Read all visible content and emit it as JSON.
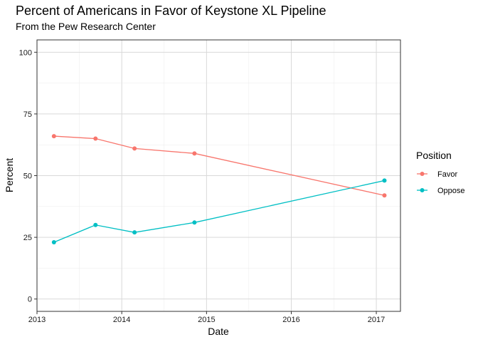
{
  "chart_data": {
    "type": "line",
    "title": "Percent of Americans in Favor of Keystone XL Pipeline",
    "subtitle": "From the Pew Research Center",
    "xlabel": "Date",
    "ylabel": "Percent",
    "x_ticks": [
      "2013",
      "2014",
      "2015",
      "2016",
      "2017"
    ],
    "y_ticks": [
      "0",
      "25",
      "50",
      "75",
      "100"
    ],
    "xlim": [
      "2013-01-01",
      "2017-04-15"
    ],
    "ylim": [
      0,
      100
    ],
    "grid": true,
    "legend": {
      "title": "Position",
      "placement": "right"
    },
    "x": [
      "2013-03-15",
      "2013-09-10",
      "2014-02-25",
      "2014-11-10",
      "2017-02-05"
    ],
    "series": [
      {
        "name": "Favor",
        "color": "#F8766D",
        "values": [
          66,
          65,
          61,
          59,
          42
        ]
      },
      {
        "name": "Oppose",
        "color": "#00BFC4",
        "values": [
          23,
          30,
          27,
          31,
          48
        ]
      }
    ]
  }
}
